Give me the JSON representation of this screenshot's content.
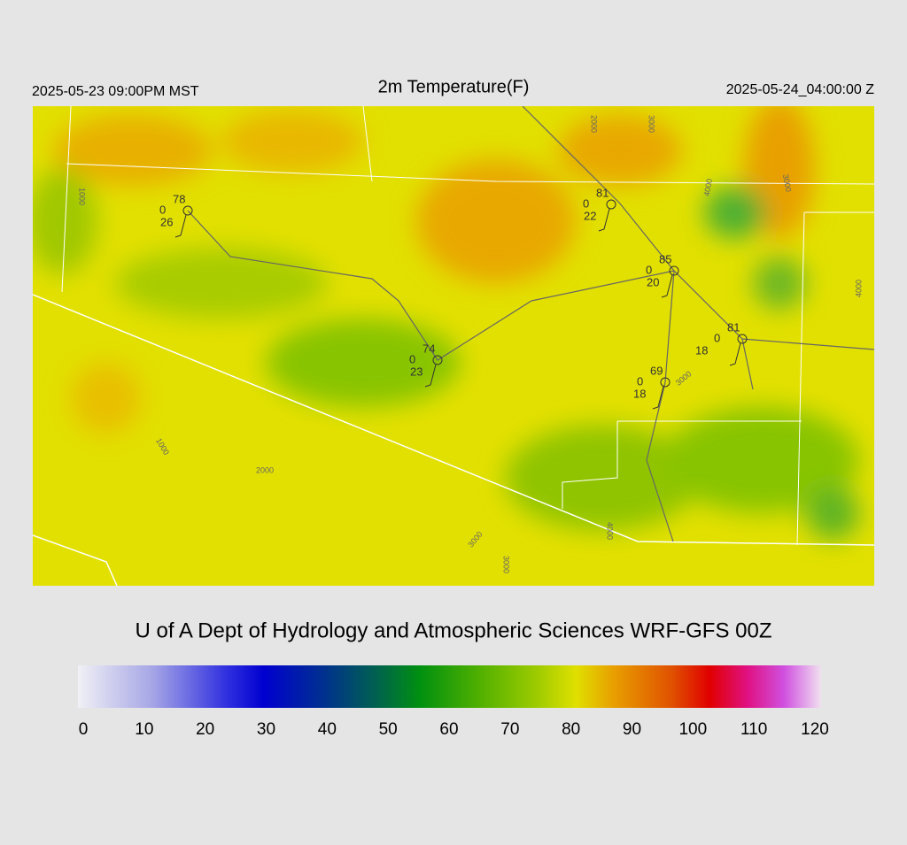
{
  "header": {
    "left": "2025-05-23 09:00PM MST",
    "title": "2m Temperature(F)",
    "right": "2025-05-24_04:00:00 Z"
  },
  "stations": [
    {
      "temp": 78,
      "mid": 0,
      "low": 26
    },
    {
      "temp": 81,
      "mid": 0,
      "low": 22
    },
    {
      "temp": 85,
      "mid": 0,
      "low": 20
    },
    {
      "temp": 81,
      "mid": 0,
      "low": 18
    },
    {
      "temp": 74,
      "mid": 0,
      "low": 23
    },
    {
      "temp": 69,
      "mid": 0,
      "low": 18
    }
  ],
  "contour_labels": [
    1000,
    2000,
    3000,
    4000,
    3000,
    4000,
    3000,
    1000,
    2000,
    3000,
    3000,
    4000
  ],
  "credit": "U of A Dept of Hydrology and Atmospheric Sciences WRF-GFS 00Z",
  "colorbar": {
    "lim": [
      0,
      120
    ],
    "ticks": [
      0,
      10,
      20,
      30,
      40,
      50,
      60,
      70,
      80,
      90,
      100,
      110,
      120
    ]
  }
}
